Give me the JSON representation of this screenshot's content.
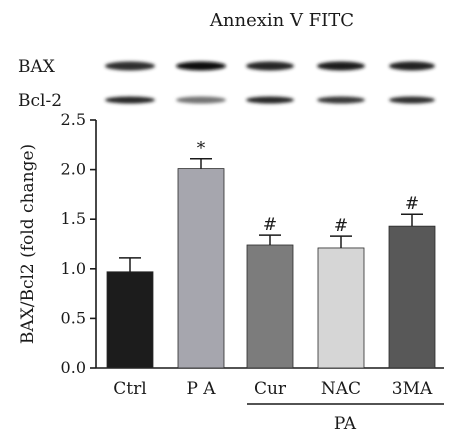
{
  "chart_data": {
    "type": "bar",
    "title": "Annexin V FITC",
    "ylabel": "BAX/Bcl2 (fold change)",
    "xlabel": "",
    "ylim": [
      0.0,
      2.5
    ],
    "yticks": [
      0.0,
      0.5,
      1.0,
      1.5,
      2.0,
      2.5
    ],
    "ytick_labels": [
      "0.0",
      "0.5",
      "1.0",
      "1.5",
      "2.0",
      "2.5"
    ],
    "categories": [
      "Ctrl",
      "P A",
      "Cur",
      "NAC",
      "3MA"
    ],
    "values": [
      0.97,
      2.01,
      1.24,
      1.21,
      1.43
    ],
    "errors": [
      0.14,
      0.1,
      0.1,
      0.12,
      0.12
    ],
    "bar_colors": [
      "#1c1c1c",
      "#a6a6ae",
      "#7c7c7c",
      "#d6d6d6",
      "#585858"
    ],
    "significance": [
      "",
      "*",
      "#",
      "#",
      "#"
    ],
    "group_label": {
      "text": "PA",
      "categories": [
        "Cur",
        "NAC",
        "3MA"
      ]
    },
    "grid": false,
    "legend": "none"
  },
  "blots": {
    "rows": [
      {
        "label": "BAX",
        "intensities": [
          0.82,
          0.95,
          0.85,
          0.88,
          0.86
        ]
      },
      {
        "label": "Bcl-2",
        "intensities": [
          0.85,
          0.55,
          0.85,
          0.78,
          0.82
        ]
      }
    ]
  }
}
